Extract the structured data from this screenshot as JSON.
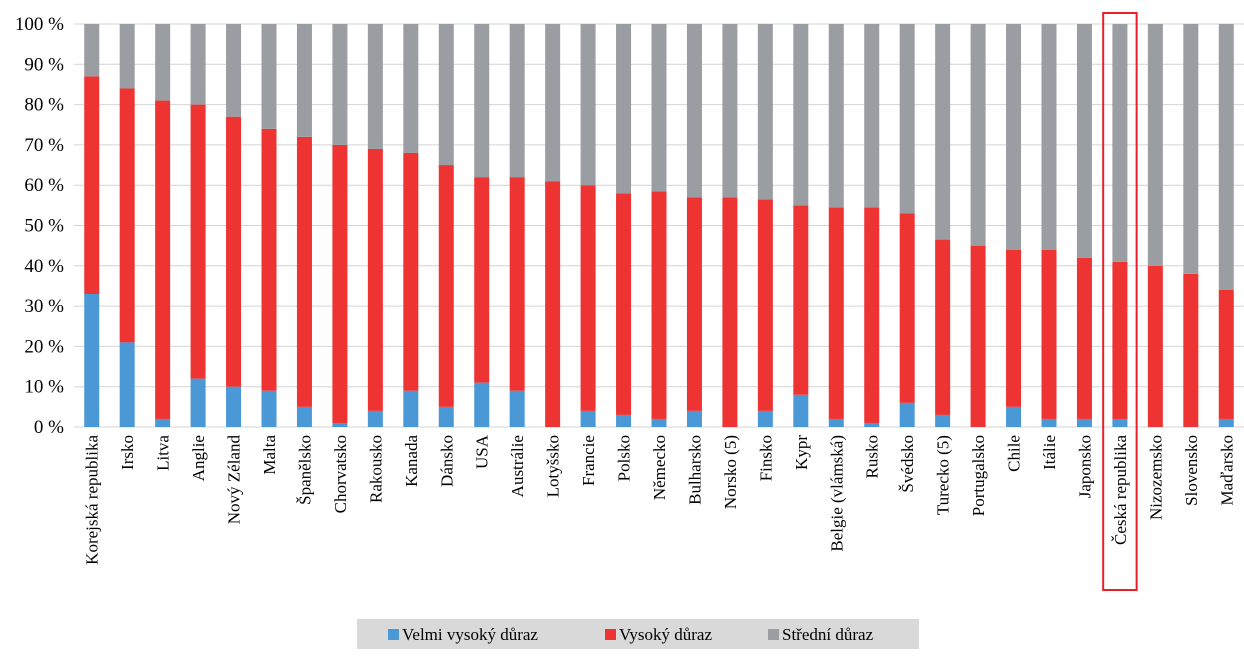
{
  "chart_data": {
    "type": "bar",
    "stacked": true,
    "percent_stacked": true,
    "title": "",
    "xlabel": "",
    "ylabel": "",
    "ylim": [
      0,
      100
    ],
    "yticks": [
      "0 %",
      "10 %",
      "20 %",
      "30 %",
      "40 %",
      "50 %",
      "60 %",
      "70 %",
      "80 %",
      "90 %",
      "100 %"
    ],
    "grid": true,
    "legend_position": "bottom",
    "highlighted_category": "Česká republika",
    "highlight_color": "#e8202a",
    "categories": [
      "Korejská republika",
      "Irsko",
      "Litva",
      "Anglie",
      "Nový Zéland",
      "Malta",
      "Španělsko",
      "Chorvatsko",
      "Rakousko",
      "Kanada",
      "Dánsko",
      "USA",
      "Austrálie",
      "Lotyšsko",
      "Francie",
      "Polsko",
      "Německo",
      "Bulharsko",
      "Norsko (5)",
      "Finsko",
      "Kypr",
      "Belgie (vlámská)",
      "Rusko",
      "Švédsko",
      "Turecko (5)",
      "Portugalsko",
      "Chile",
      "Itálie",
      "Japonsko",
      "Česká republika",
      "Nizozemsko",
      "Slovensko",
      "Maďarsko"
    ],
    "series": [
      {
        "name": "Velmi vysoký důraz",
        "color": "#4a98d6",
        "values": [
          33,
          21,
          2,
          12,
          10,
          9,
          5,
          1,
          4,
          9,
          5,
          11,
          9,
          0,
          4,
          3,
          2,
          4,
          0,
          4,
          8,
          2,
          1,
          6,
          3,
          0,
          5,
          2,
          2,
          2,
          0,
          0,
          2
        ]
      },
      {
        "name": "Vysoký důraz",
        "color": "#ee3333",
        "values": [
          54,
          63,
          79,
          68,
          67,
          65,
          67,
          69,
          65,
          59,
          60,
          51,
          53,
          61,
          56,
          55,
          56.5,
          53,
          57,
          52.5,
          47,
          52.5,
          53.5,
          47,
          43.5,
          45,
          39,
          42,
          40,
          39,
          40,
          38,
          32
        ]
      },
      {
        "name": "Střední důraz",
        "color": "#9a9ea2",
        "values": [
          13,
          16,
          19,
          20,
          23,
          26,
          28,
          30,
          31,
          32,
          35,
          38,
          38,
          39,
          40,
          42,
          41.5,
          43,
          43,
          43.5,
          45,
          45.5,
          45.5,
          47,
          53.5,
          55,
          56,
          56,
          58,
          59,
          60,
          62,
          66
        ]
      }
    ]
  }
}
